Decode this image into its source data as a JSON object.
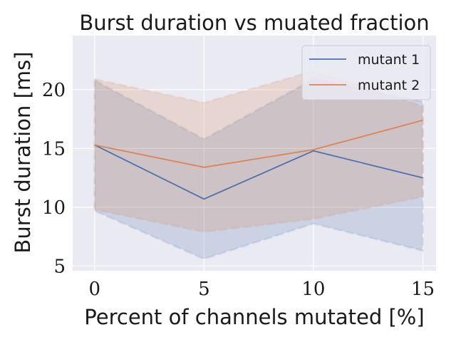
{
  "chart_data": {
    "type": "line",
    "title": "Burst duration vs muated fraction",
    "xlabel": "Percent of channels mutated [%]",
    "ylabel": "Burst duration [ms]",
    "x": [
      0,
      5,
      10,
      15
    ],
    "xticks": [
      "0",
      "5",
      "10",
      "15"
    ],
    "yticks": [
      "5",
      "10",
      "15",
      "20"
    ],
    "xlim": [
      -1,
      15.6
    ],
    "ylim": [
      4.6,
      24.6
    ],
    "grid": true,
    "legend_position": "top-right",
    "background": "#eaeaf2",
    "series": [
      {
        "name": "mutant 1",
        "color": "#4c72b0",
        "values": [
          15.3,
          10.7,
          14.8,
          12.5
        ],
        "lower": [
          9.7,
          5.6,
          8.6,
          6.3
        ],
        "upper": [
          20.8,
          15.8,
          20.9,
          19.0
        ]
      },
      {
        "name": "mutant 2",
        "color": "#dd8452",
        "values": [
          15.3,
          13.4,
          14.9,
          17.4
        ],
        "lower": [
          9.8,
          7.9,
          9.0,
          10.9
        ],
        "upper": [
          20.9,
          18.9,
          21.6,
          18.6
        ]
      }
    ]
  }
}
